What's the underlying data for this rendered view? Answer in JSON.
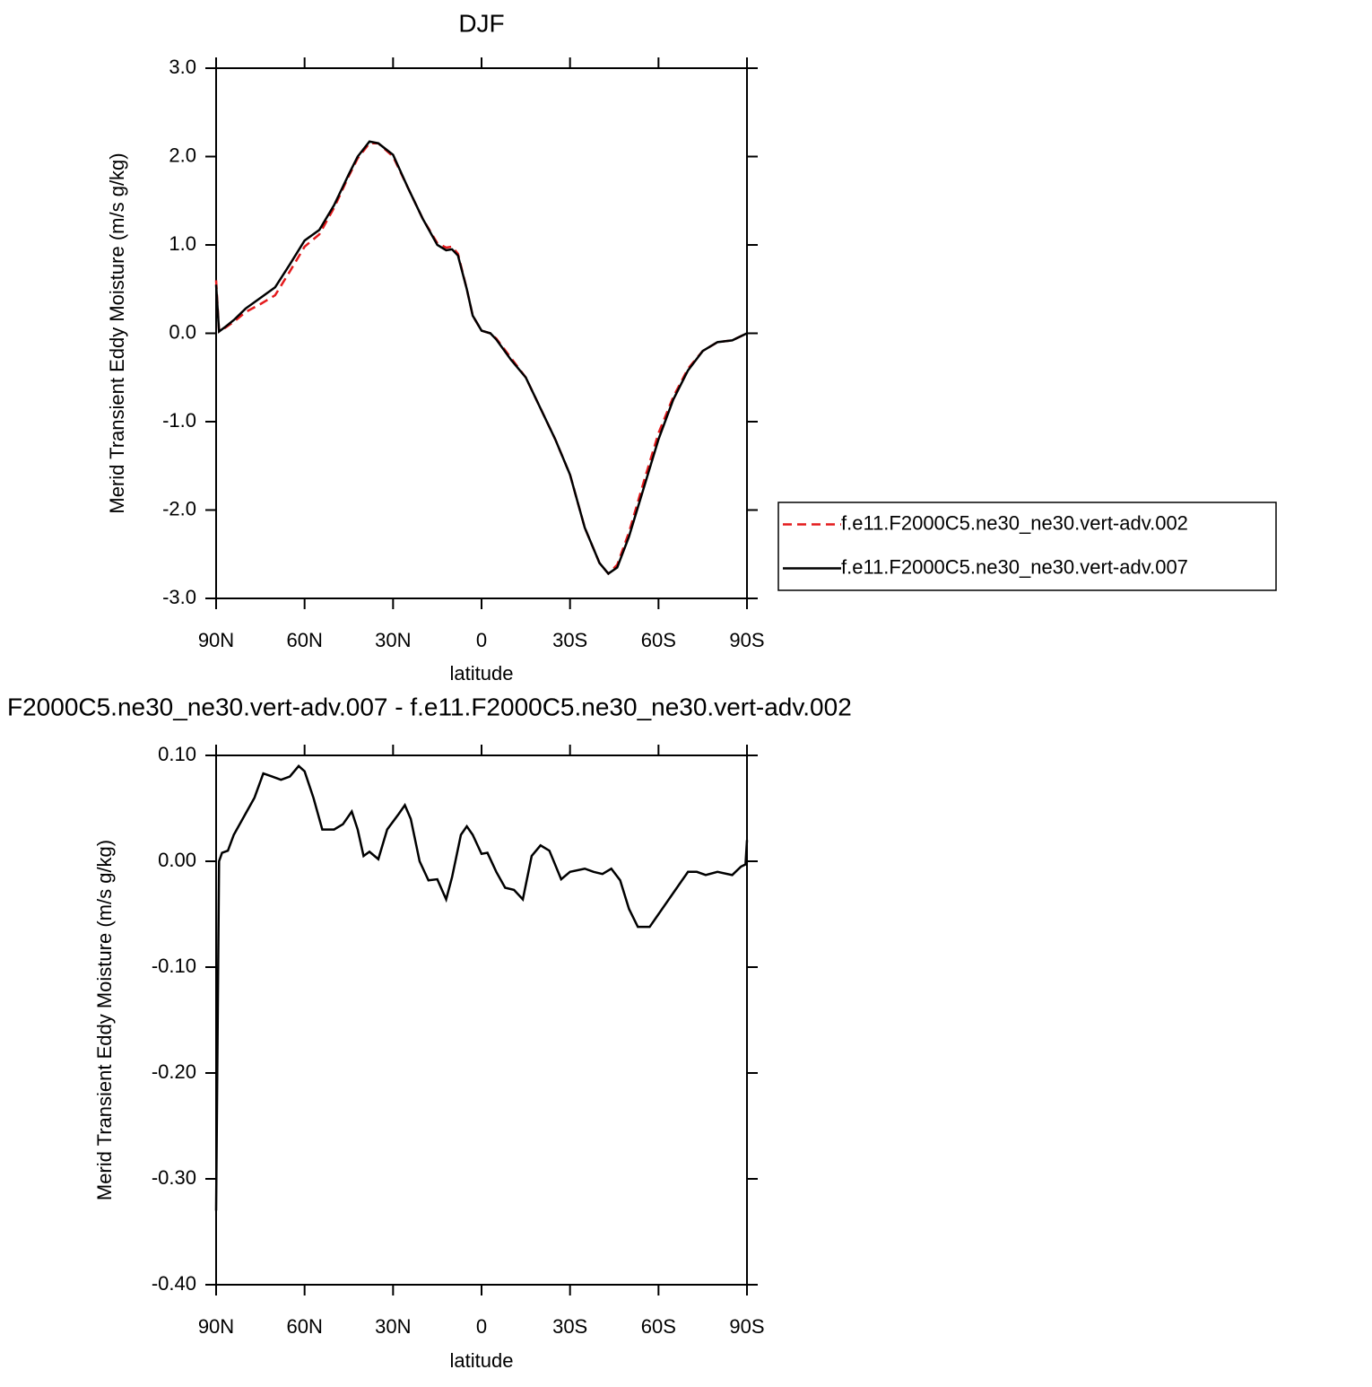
{
  "chart_data": [
    {
      "type": "line",
      "title": "DJF",
      "xlabel": "latitude",
      "ylabel": "Merid Transient Eddy Moisture (m/s g/kg)",
      "xlim": [
        90,
        -90
      ],
      "xticks": [
        {
          "value": 90,
          "label": "90N"
        },
        {
          "value": 60,
          "label": "60N"
        },
        {
          "value": 30,
          "label": "30N"
        },
        0,
        {
          "value": -30,
          "label": "30S"
        },
        {
          "value": -60,
          "label": "60S"
        },
        {
          "value": -90,
          "label": "90S"
        }
      ],
      "ylim": [
        -3,
        3
      ],
      "yticks": [
        {
          "value": -3,
          "label": "-3.0"
        },
        {
          "value": -2,
          "label": "-2.0"
        },
        {
          "value": -1,
          "label": "-1.0"
        },
        {
          "value": 0,
          "label": "0.0"
        },
        {
          "value": 1,
          "label": "1.0"
        },
        {
          "value": 2,
          "label": "2.0"
        },
        {
          "value": 3,
          "label": "3.0"
        }
      ],
      "legend": "right",
      "x": [
        90,
        89,
        87,
        84,
        80,
        75,
        70,
        65,
        60,
        55,
        50,
        45,
        42,
        38,
        35,
        30,
        25,
        20,
        15,
        12,
        10,
        8,
        5,
        3,
        0,
        -3,
        -5,
        -10,
        -15,
        -20,
        -25,
        -30,
        -35,
        -40,
        -43,
        -46,
        -50,
        -55,
        -60,
        -65,
        -70,
        -75,
        -80,
        -85,
        -90
      ],
      "series": [
        {
          "name": "f.e11.F2000C5.ne30_ne30.vert-adv.002",
          "color": "#e41a1c",
          "style": "dashed",
          "values": [
            0.6,
            0.02,
            0.06,
            0.13,
            0.24,
            0.33,
            0.43,
            0.7,
            0.98,
            1.12,
            1.42,
            1.78,
            1.98,
            2.15,
            2.15,
            2.0,
            1.65,
            1.3,
            1.02,
            0.97,
            0.98,
            0.9,
            0.5,
            0.2,
            0.03,
            0.0,
            -0.06,
            -0.28,
            -0.5,
            -0.85,
            -1.2,
            -1.6,
            -2.2,
            -2.6,
            -2.72,
            -2.62,
            -2.25,
            -1.68,
            -1.13,
            -0.72,
            -0.4,
            -0.2,
            -0.1,
            -0.08,
            0.0
          ]
        },
        {
          "name": "f.e11.F2000C5.ne30_ne30.vert-adv.007",
          "color": "#000000",
          "style": "solid",
          "values": [
            0.55,
            0.02,
            0.07,
            0.15,
            0.28,
            0.4,
            0.52,
            0.78,
            1.05,
            1.17,
            1.45,
            1.8,
            2.0,
            2.17,
            2.15,
            2.02,
            1.65,
            1.3,
            1.0,
            0.94,
            0.95,
            0.88,
            0.5,
            0.2,
            0.03,
            0.0,
            -0.07,
            -0.3,
            -0.5,
            -0.85,
            -1.2,
            -1.6,
            -2.2,
            -2.6,
            -2.72,
            -2.65,
            -2.3,
            -1.75,
            -1.2,
            -0.75,
            -0.42,
            -0.2,
            -0.1,
            -0.08,
            0.0
          ]
        }
      ]
    },
    {
      "type": "line",
      "title": "F2000C5.ne30_ne30.vert-adv.007 - f.e11.F2000C5.ne30_ne30.vert-adv.002",
      "xlabel": "latitude",
      "ylabel": "Merid Transient Eddy Moisture (m/s g/kg)",
      "xlim": [
        90,
        -90
      ],
      "xticks": [
        {
          "value": 90,
          "label": "90N"
        },
        {
          "value": 60,
          "label": "60N"
        },
        {
          "value": 30,
          "label": "30N"
        },
        0,
        {
          "value": -30,
          "label": "30S"
        },
        {
          "value": -60,
          "label": "60S"
        },
        {
          "value": -90,
          "label": "90S"
        }
      ],
      "ylim": [
        -0.4,
        0.1
      ],
      "yticks": [
        {
          "value": -0.4,
          "label": "-0.40"
        },
        {
          "value": -0.3,
          "label": "-0.30"
        },
        {
          "value": -0.2,
          "label": "-0.20"
        },
        {
          "value": -0.1,
          "label": "-0.10"
        },
        {
          "value": 0,
          "label": "0.00"
        },
        {
          "value": 0.1,
          "label": "0.10"
        }
      ],
      "x": [
        90,
        89,
        88,
        86,
        84,
        80,
        77,
        74,
        71,
        68,
        65,
        62,
        60,
        57,
        54,
        50,
        47,
        44,
        42,
        40,
        38,
        35,
        32,
        28,
        26,
        24,
        21,
        18,
        15,
        12,
        10,
        7,
        5,
        3,
        0,
        -2,
        -5,
        -8,
        -11,
        -14,
        -17,
        -20,
        -23,
        -27,
        -30,
        -35,
        -38,
        -41,
        -44,
        -47,
        -50,
        -53,
        -57,
        -60,
        -65,
        -70,
        -73,
        -76,
        -80,
        -85,
        -88,
        -89.5,
        -90
      ],
      "series": [
        {
          "color": "#000000",
          "style": "solid",
          "values": [
            -0.33,
            0.0,
            0.008,
            0.01,
            0.025,
            0.045,
            0.06,
            0.083,
            0.08,
            0.077,
            0.08,
            0.09,
            0.085,
            0.06,
            0.03,
            0.03,
            0.035,
            0.047,
            0.03,
            0.005,
            0.009,
            0.002,
            0.03,
            0.045,
            0.053,
            0.04,
            0.0,
            -0.018,
            -0.017,
            -0.036,
            -0.015,
            0.025,
            0.033,
            0.025,
            0.007,
            0.008,
            -0.01,
            -0.025,
            -0.027,
            -0.036,
            0.005,
            0.015,
            0.01,
            -0.017,
            -0.01,
            -0.007,
            -0.01,
            -0.012,
            -0.007,
            -0.018,
            -0.045,
            -0.062,
            -0.062,
            -0.05,
            -0.03,
            -0.01,
            -0.01,
            -0.013,
            -0.01,
            -0.013,
            -0.005,
            -0.003,
            0.02
          ]
        }
      ]
    }
  ]
}
